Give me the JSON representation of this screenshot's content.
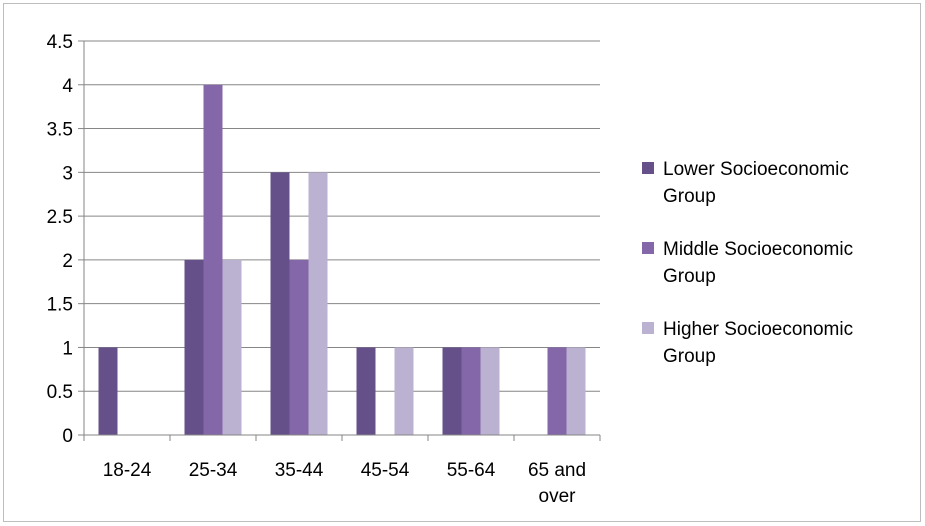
{
  "chart_data": {
    "type": "bar",
    "categories": [
      "18-24",
      "25-34",
      "35-44",
      "45-54",
      "55-64",
      "65 and over"
    ],
    "category_lines": [
      [
        "18-24"
      ],
      [
        "25-34"
      ],
      [
        "35-44"
      ],
      [
        "45-54"
      ],
      [
        "55-64"
      ],
      [
        "65 and",
        "over"
      ]
    ],
    "series": [
      {
        "name": "Lower Socioeconomic Group",
        "name_lines": [
          "Lower Socioeconomic",
          "Group"
        ],
        "color": "#66508a",
        "values": [
          1,
          2,
          3,
          1,
          1,
          0
        ]
      },
      {
        "name": "Middle Socioeconomic Group",
        "name_lines": [
          "Middle Socioeconomic",
          "Group"
        ],
        "color": "#8467a8",
        "values": [
          0,
          4,
          2,
          0,
          1,
          1
        ]
      },
      {
        "name": "Higher Socioeconomic Group",
        "name_lines": [
          "Higher Socioeconomic",
          "Group"
        ],
        "color": "#bbb1d0",
        "values": [
          0,
          2,
          3,
          1,
          1,
          1
        ]
      }
    ],
    "y_ticks": [
      "0",
      "0.5",
      "1",
      "1.5",
      "2",
      "2.5",
      "3",
      "3.5",
      "4",
      "4.5"
    ],
    "ylim": [
      0,
      4.5
    ],
    "title": "",
    "xlabel": "",
    "ylabel": "",
    "grid": true,
    "legend": "right"
  }
}
